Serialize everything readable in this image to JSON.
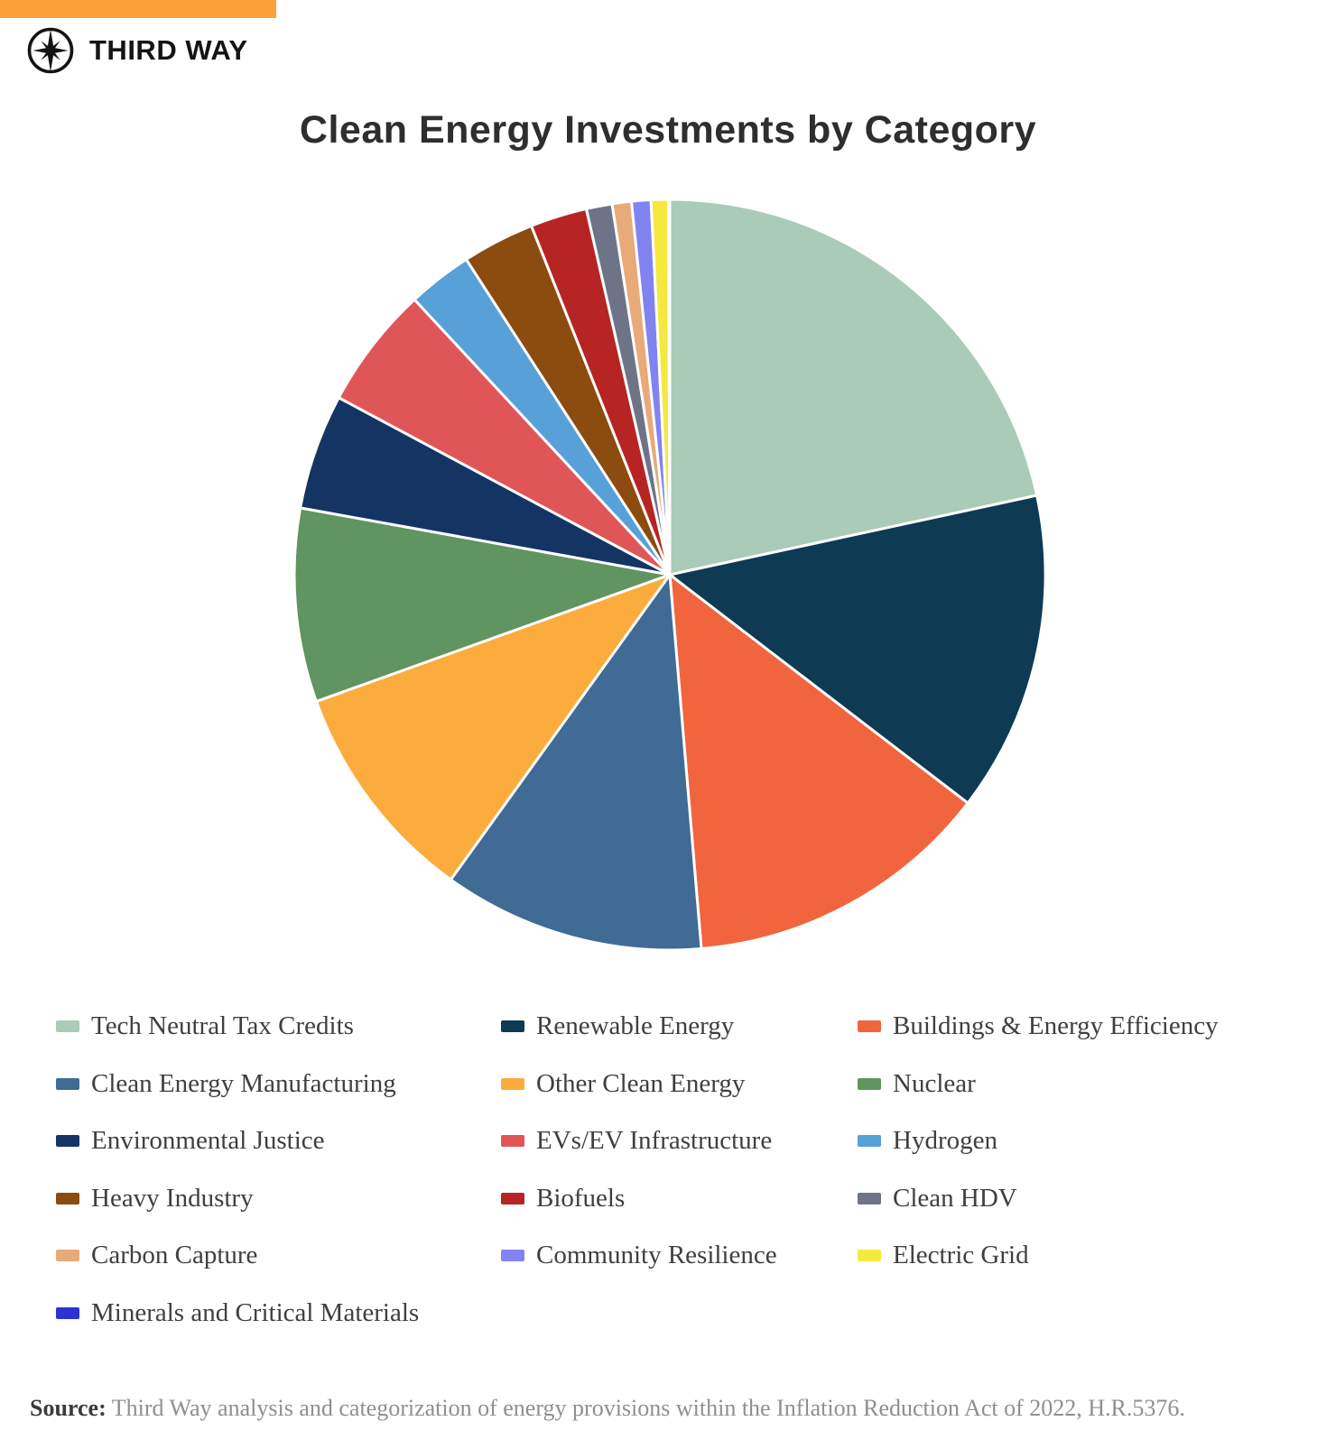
{
  "brand": {
    "name": "THIRD WAY",
    "topbar_color": "#F9A13B",
    "logo_icon": "compass-star-icon"
  },
  "title": "Clean Energy Investments by Category",
  "chart_data": {
    "type": "pie",
    "title": "Clean Energy Investments by Category",
    "start_angle_deg": 0,
    "direction": "clockwise",
    "legend_position": "bottom",
    "value_unit": "percent_of_total_estimated_from_slice_angles",
    "categories": [
      "Tech Neutral Tax Credits",
      "Renewable Energy",
      "Buildings & Energy Efficiency",
      "Clean Energy Manufacturing",
      "Other Clean Energy",
      "Nuclear",
      "Environmental Justice",
      "EVs/EV Infrastructure",
      "Hydrogen",
      "Heavy Industry",
      "Biofuels",
      "Clean HDV",
      "Carbon Capture",
      "Community Resilience",
      "Electric Grid",
      "Minerals and Critical Materials"
    ],
    "values": [
      21.61,
      13.8,
      13.25,
      11.25,
      9.61,
      8.33,
      4.97,
      5.28,
      2.78,
      3.11,
      2.44,
      1.11,
      0.83,
      0.83,
      0.75,
      0.05
    ],
    "colors": [
      "#A9CBB7",
      "#0E3A53",
      "#F0653E",
      "#3F6B95",
      "#FBAC3D",
      "#609460",
      "#143563",
      "#E05558",
      "#58A0D8",
      "#8C4B0F",
      "#B62423",
      "#6E7487",
      "#E7AA78",
      "#8183F0",
      "#F5E93F",
      "#2C32D5"
    ],
    "separator_color": "#FFFFFF"
  },
  "legend": {
    "items": [
      {
        "label": "Tech Neutral Tax Credits",
        "color": "#A9CBB7"
      },
      {
        "label": "Renewable Energy",
        "color": "#0E3A53"
      },
      {
        "label": "Buildings & Energy Efficiency",
        "color": "#F0653E"
      },
      {
        "label": "Clean Energy Manufacturing",
        "color": "#3F6B95"
      },
      {
        "label": "Other Clean Energy",
        "color": "#FBAC3D"
      },
      {
        "label": "Nuclear",
        "color": "#609460"
      },
      {
        "label": "Environmental Justice",
        "color": "#143563"
      },
      {
        "label": "EVs/EV Infrastructure",
        "color": "#E05558"
      },
      {
        "label": "Hydrogen",
        "color": "#58A0D8"
      },
      {
        "label": "Heavy Industry",
        "color": "#8C4B0F"
      },
      {
        "label": "Biofuels",
        "color": "#B62423"
      },
      {
        "label": "Clean HDV",
        "color": "#6E7487"
      },
      {
        "label": "Carbon Capture",
        "color": "#E7AA78"
      },
      {
        "label": "Community Resilience",
        "color": "#8183F0"
      },
      {
        "label": "Electric Grid",
        "color": "#F5E93F"
      },
      {
        "label": "Minerals and Critical Materials",
        "color": "#2C32D5"
      }
    ]
  },
  "footer": {
    "source_label": "Source:",
    "source_text": " Third Way analysis and categorization of energy provisions within the Inflation Reduction Act of 2022, H.R.5376."
  }
}
